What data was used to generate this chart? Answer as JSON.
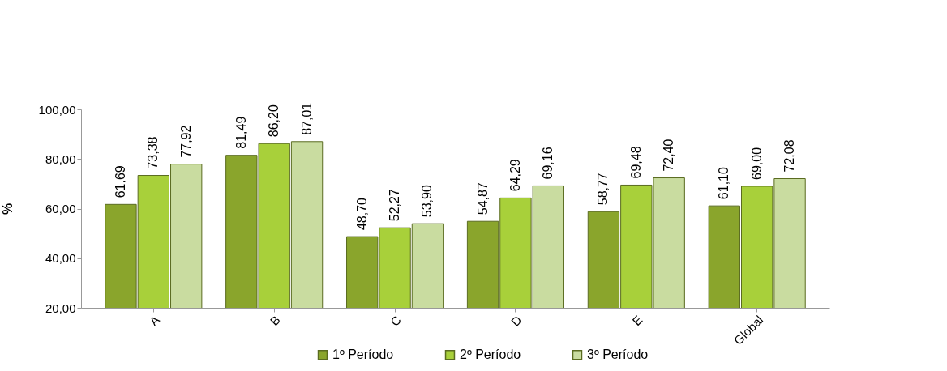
{
  "chart_data": {
    "type": "bar",
    "ylabel": "%",
    "categories": [
      "A",
      "B",
      "C",
      "D",
      "E",
      "Global"
    ],
    "series": [
      {
        "name": "1º Período",
        "color": "#8aa52c",
        "values": [
          61.69,
          81.49,
          48.7,
          54.87,
          58.77,
          61.1
        ],
        "value_labels": [
          "61,69",
          "81,49",
          "48,70",
          "54,87",
          "58,77",
          "61,10"
        ]
      },
      {
        "name": "2º Período",
        "color": "#a8d03a",
        "values": [
          73.38,
          86.2,
          52.27,
          64.29,
          69.48,
          69.0
        ],
        "value_labels": [
          "73,38",
          "86,20",
          "52,27",
          "64,29",
          "69,48",
          "69,00"
        ]
      },
      {
        "name": "3º Período",
        "color": "#c9dca0",
        "values": [
          77.92,
          87.01,
          53.9,
          69.16,
          72.4,
          72.08
        ],
        "value_labels": [
          "77,92",
          "87,01",
          "53,90",
          "69,16",
          "72,40",
          "72,08"
        ]
      }
    ],
    "ylim": [
      20,
      100
    ],
    "yticks": [
      {
        "value": 20,
        "label": "20,00"
      },
      {
        "value": 40,
        "label": "40,00"
      },
      {
        "value": 60,
        "label": "60,00"
      },
      {
        "value": 80,
        "label": "80,00"
      },
      {
        "value": 100,
        "label": "100,00"
      }
    ],
    "grid": false,
    "legend": "bottom"
  }
}
